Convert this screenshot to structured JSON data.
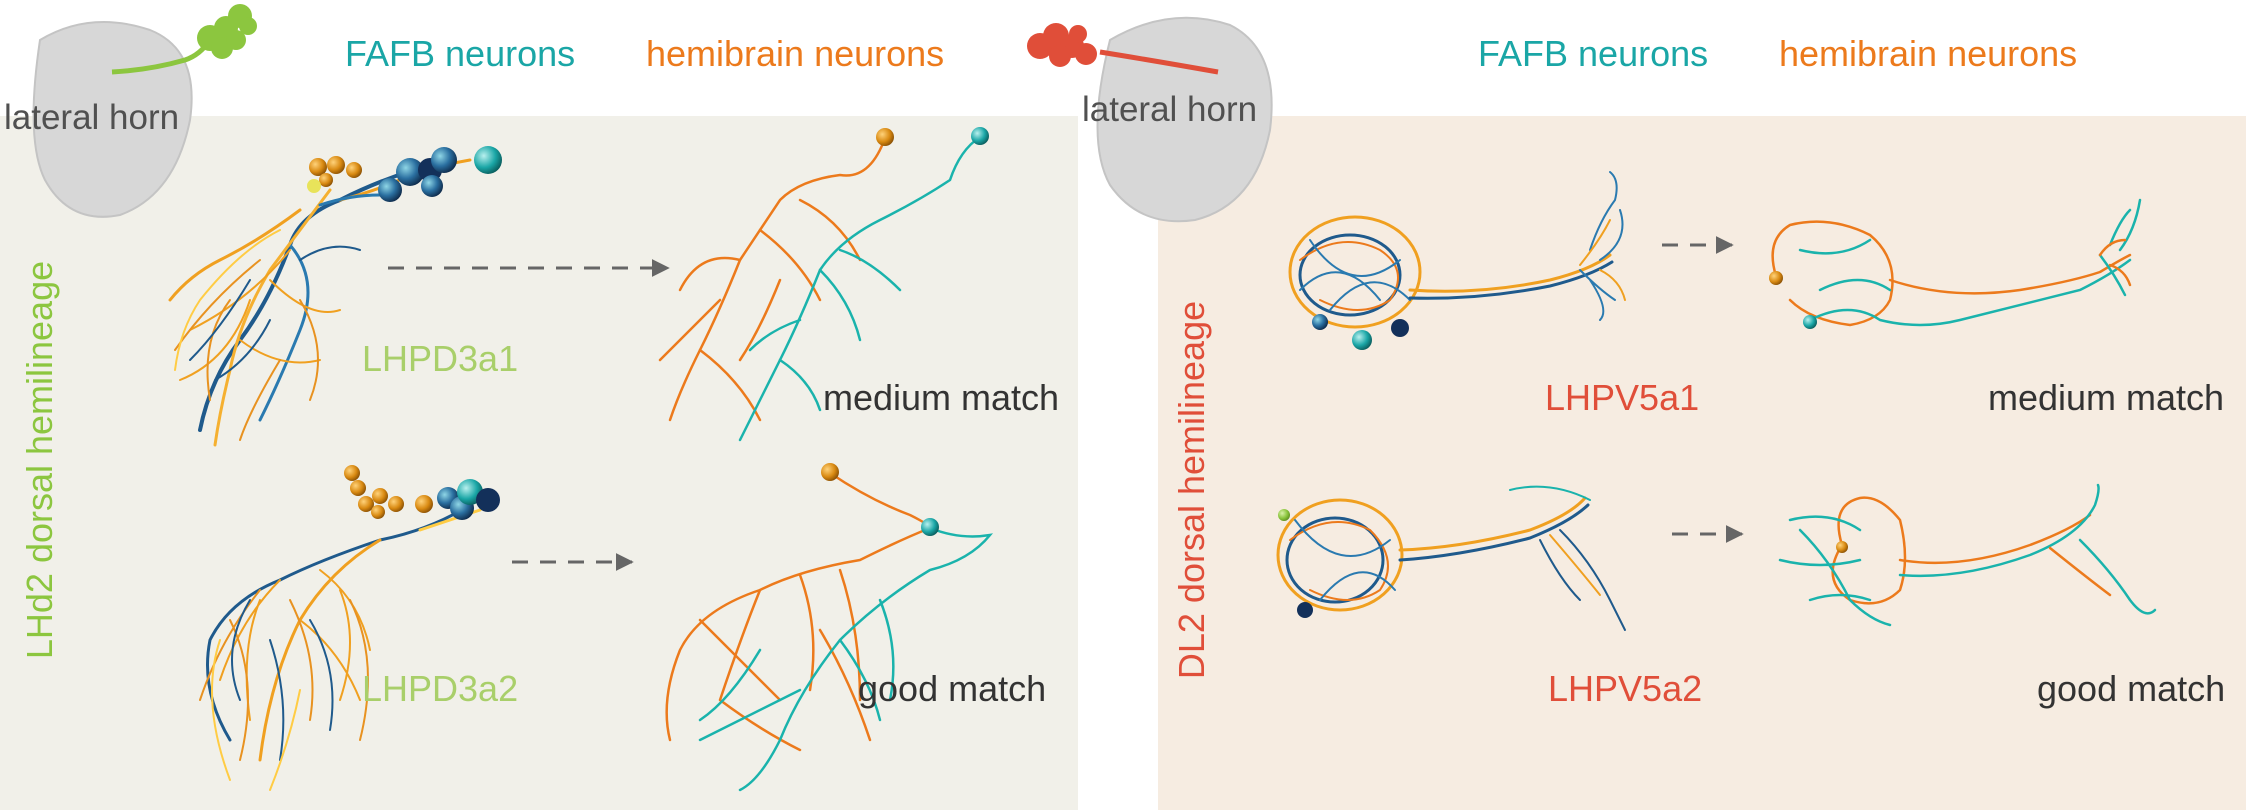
{
  "colors": {
    "fafb": "#1aa6a6",
    "hemibrain": "#ec7a1c",
    "lhd2": "#8cc63f",
    "dl2": "#e04e39",
    "panel_left_bg": "#f1f0e9",
    "panel_right_bg": "#f6ece1",
    "brain": "#d7d7d7",
    "arrow": "#666666"
  },
  "left": {
    "brain_label": "lateral horn",
    "legend_fafb": "FAFB neurons",
    "legend_hemibrain": "hemibrain neurons",
    "hemilineage": "LHd2 dorsal hemilineage",
    "rows": [
      {
        "cell_type": "LHPD3a1",
        "match": "medium match"
      },
      {
        "cell_type": "LHPD3a2",
        "match": "good match"
      }
    ]
  },
  "right": {
    "brain_label": "lateral horn",
    "legend_fafb": "FAFB neurons",
    "legend_hemibrain": "hemibrain neurons",
    "hemilineage": "DL2 dorsal hemilineage",
    "rows": [
      {
        "cell_type": "LHPV5a1",
        "match": "medium match"
      },
      {
        "cell_type": "LHPV5a2",
        "match": "good match"
      }
    ]
  }
}
